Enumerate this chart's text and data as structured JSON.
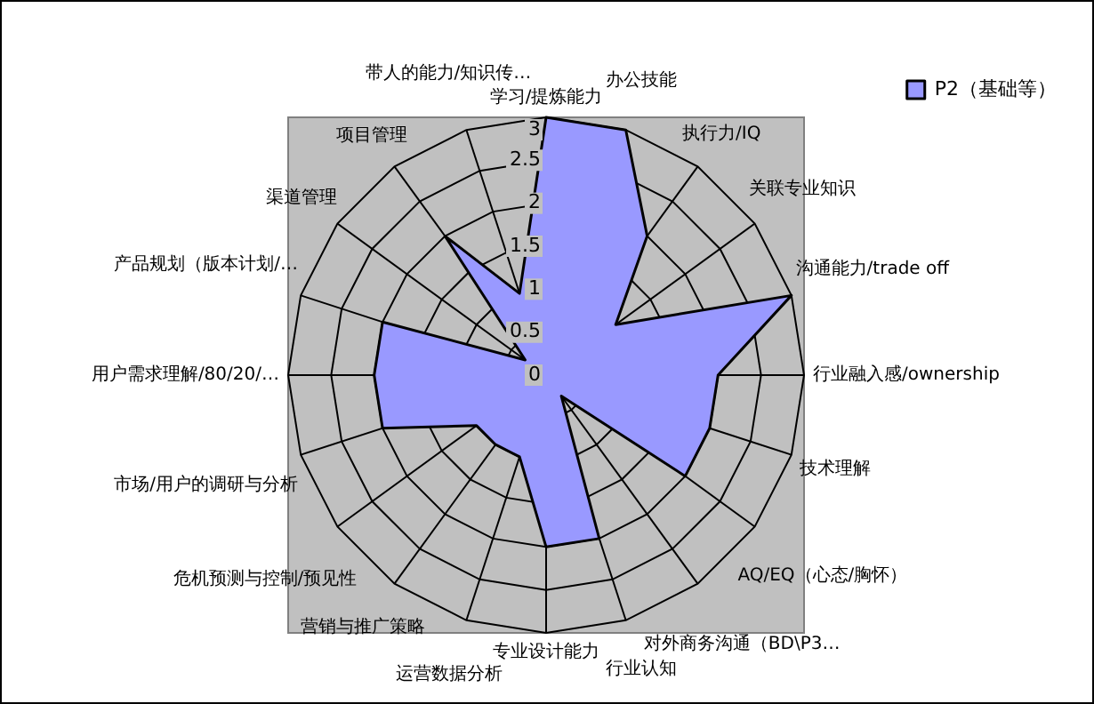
{
  "chart_data": {
    "type": "radar",
    "categories": [
      "学习/提炼能力",
      "办公技能",
      "执行力/IQ",
      "关联专业知识",
      "沟通能力/trade off",
      "行业融入感/ownership",
      "技术理解",
      "AQ/EQ（心态/胸怀）",
      "对外商务沟通（BD\\P3…",
      "行业认知",
      "专业设计能力",
      "运营数据分析",
      "营销与推广策略",
      "危机预测与控制/预见性",
      "市场/用户的调研与分析",
      "用户需求理解/80/20/…",
      "产品规划（版本计划/…",
      "渠道管理",
      "项目管理",
      "带人的能力/知识传…"
    ],
    "series": [
      {
        "name": "P2（基础等）",
        "color": "#9999ff",
        "values": [
          3,
          3,
          2,
          1,
          3,
          2,
          2,
          2,
          0.3,
          2,
          2,
          1,
          1,
          1,
          2,
          2,
          2,
          0.3,
          2,
          1
        ]
      }
    ],
    "ylim": [
      0,
      3
    ],
    "yticks": [
      0,
      0.5,
      1,
      1.5,
      2,
      2.5,
      3
    ],
    "grid": true,
    "legend": "top right",
    "marker": "none"
  }
}
